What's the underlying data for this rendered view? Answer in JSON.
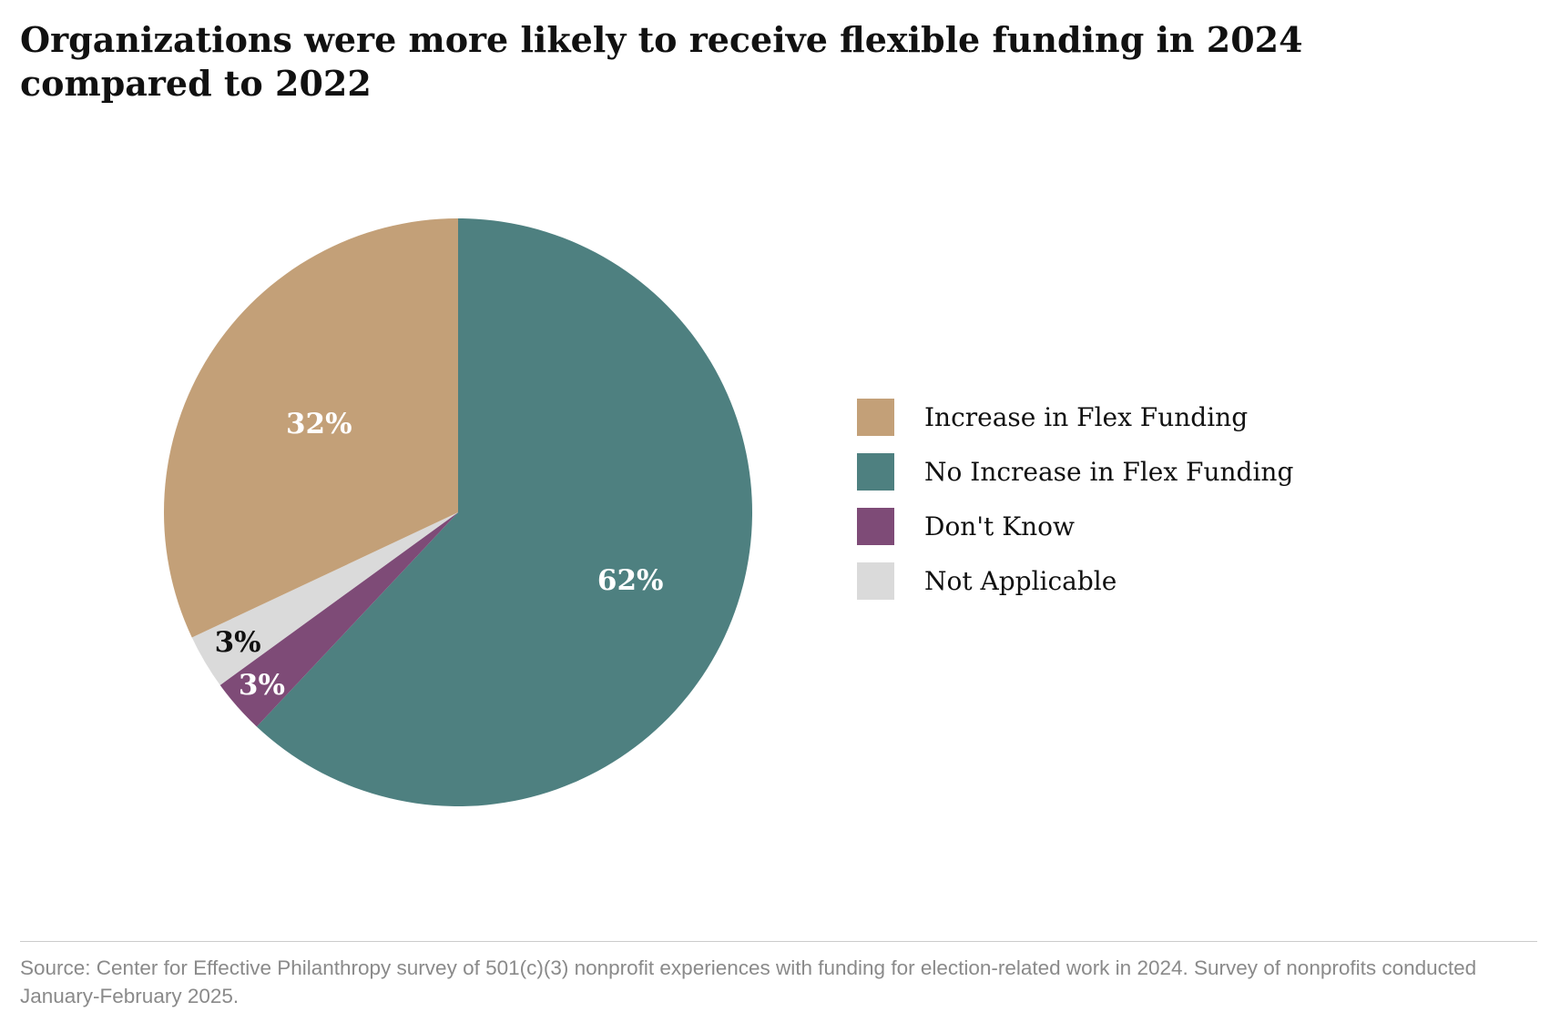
{
  "chart_data": {
    "type": "pie",
    "title": "Organizations were more likely to receive flexible funding in 2024 compared to 2022",
    "start_angle_deg": 0,
    "direction": "clockwise",
    "slices": [
      {
        "key": "no-increase",
        "name": "No Increase in Flex Funding",
        "value": 62,
        "label": "62%",
        "color": "#4e8080",
        "label_color": "#ffffff"
      },
      {
        "key": "dont-know",
        "name": "Don't Know",
        "value": 3,
        "label": "3%",
        "color": "#7e4b77",
        "label_color": "#ffffff"
      },
      {
        "key": "not-applicable",
        "name": "Not Applicable",
        "value": 3,
        "label": "3%",
        "color": "#dadada",
        "label_color": "#111111"
      },
      {
        "key": "increase",
        "name": "Increase in Flex Funding",
        "value": 32,
        "label": "32%",
        "color": "#c3a078",
        "label_color": "#ffffff"
      }
    ],
    "legend": {
      "position": "right",
      "entries": [
        {
          "name": "Increase in Flex Funding",
          "color": "#c3a078"
        },
        {
          "name": "No Increase in Flex Funding",
          "color": "#4e8080"
        },
        {
          "name": "Don't Know",
          "color": "#7e4b77"
        },
        {
          "name": "Not Applicable",
          "color": "#dadada"
        }
      ]
    }
  },
  "footer": {
    "source": "Source: Center for Effective Philanthropy survey of 501(c)(3) nonprofit experiences with funding for election-related work in 2024. Survey of nonprofits conducted January-February 2025."
  }
}
